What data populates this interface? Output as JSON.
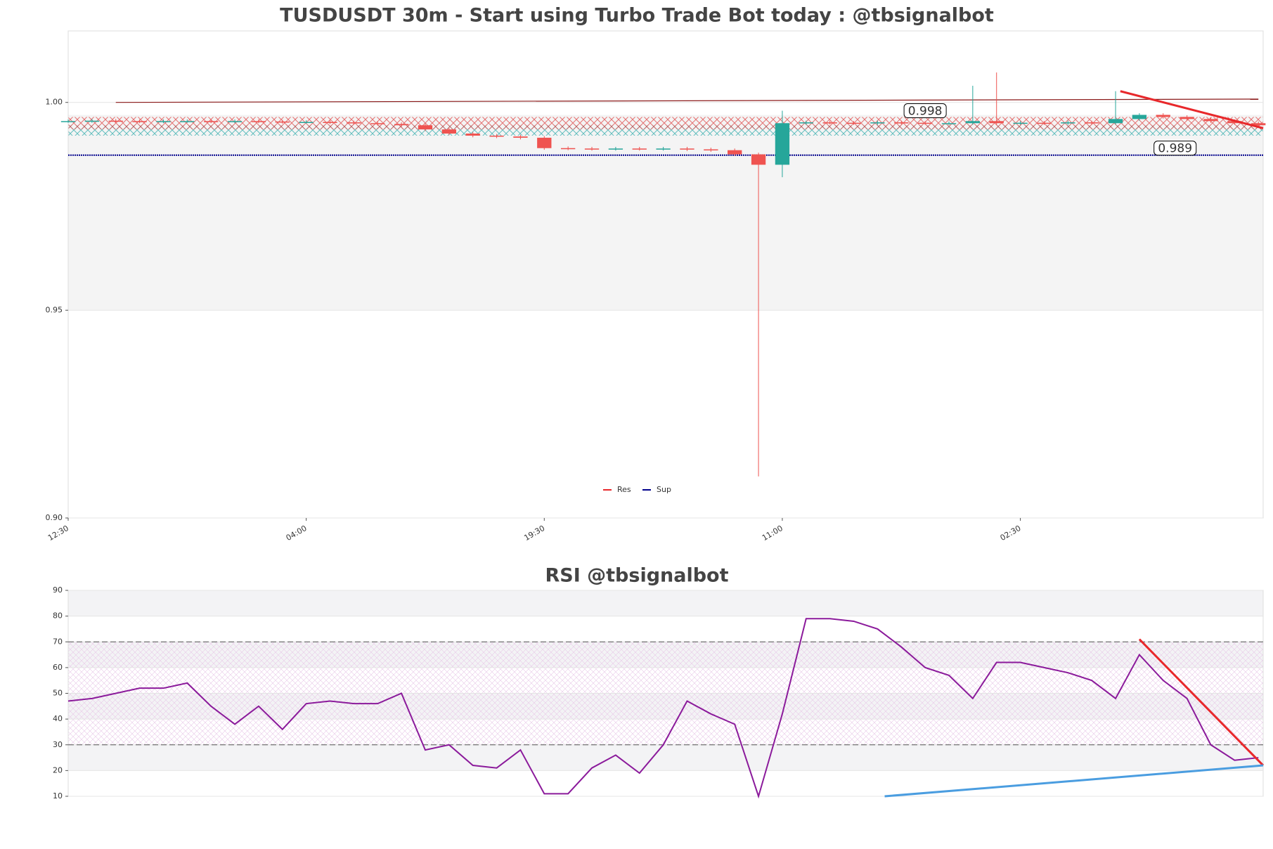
{
  "chart_data": [
    {
      "type": "candlestick",
      "title": "TUSDUSDT 30m - Start using Turbo Trade Bot today : @tbsignalbot",
      "x": [
        0,
        1,
        2,
        3,
        4,
        5,
        6,
        7,
        8,
        9,
        10,
        11,
        12,
        13,
        14,
        15,
        16,
        17,
        18,
        19,
        20,
        21,
        22,
        23,
        24,
        25,
        26,
        27,
        28,
        29,
        30,
        31,
        32,
        33,
        34,
        35,
        36,
        37,
        38,
        39,
        40,
        41,
        42,
        43,
        44,
        45,
        46,
        47,
        48,
        49,
        50
      ],
      "open": [
        0.9955,
        0.9955,
        0.9956,
        0.9955,
        0.9954,
        0.9955,
        0.9955,
        0.9954,
        0.9955,
        0.9954,
        0.9953,
        0.9953,
        0.9952,
        0.995,
        0.9948,
        0.9945,
        0.9935,
        0.9925,
        0.992,
        0.9918,
        0.9915,
        0.989,
        0.9889,
        0.9888,
        0.9889,
        0.9888,
        0.9889,
        0.9887,
        0.9885,
        0.9875,
        0.985,
        0.995,
        0.9952,
        0.9951,
        0.995,
        0.9952,
        0.9951,
        0.995,
        0.995,
        0.9955,
        0.995,
        0.9951,
        0.995,
        0.9952,
        0.995,
        0.996,
        0.997,
        0.9965,
        0.996,
        0.9955,
        0.995
      ],
      "high": [
        0.9959,
        0.996,
        0.996,
        0.9959,
        0.9959,
        0.9959,
        0.9959,
        0.9959,
        0.9959,
        0.9958,
        0.9957,
        0.9957,
        0.9956,
        0.9954,
        0.9952,
        0.9949,
        0.9939,
        0.9929,
        0.9924,
        0.9922,
        0.9919,
        0.9894,
        0.9893,
        0.9893,
        0.9893,
        0.9893,
        0.9893,
        0.9891,
        0.9889,
        0.9879,
        0.998,
        0.9956,
        0.9956,
        0.9955,
        0.9956,
        0.9956,
        0.9955,
        0.9954,
        1.004,
        1.0072,
        0.9955,
        0.9955,
        0.9956,
        0.9956,
        1.0027,
        0.9974,
        0.9974,
        0.9969,
        0.9964,
        0.9959,
        0.9954
      ],
      "low": [
        0.9951,
        0.9951,
        0.9951,
        0.995,
        0.995,
        0.9951,
        0.995,
        0.995,
        0.995,
        0.9949,
        0.9949,
        0.9948,
        0.9946,
        0.9944,
        0.9941,
        0.9931,
        0.9921,
        0.9916,
        0.9914,
        0.9911,
        0.9886,
        0.9885,
        0.9884,
        0.9884,
        0.9884,
        0.9884,
        0.9883,
        0.9881,
        0.9871,
        0.91,
        0.982,
        0.9946,
        0.9947,
        0.9946,
        0.9946,
        0.9947,
        0.9946,
        0.9946,
        0.9946,
        0.9946,
        0.9946,
        0.9946,
        0.9946,
        0.9946,
        0.9946,
        0.9956,
        0.9961,
        0.9956,
        0.9951,
        0.9946,
        0.9941
      ],
      "close": [
        0.9955,
        0.9956,
        0.9955,
        0.9954,
        0.9955,
        0.9955,
        0.9954,
        0.9955,
        0.9954,
        0.9953,
        0.9953,
        0.9952,
        0.995,
        0.9948,
        0.9945,
        0.9935,
        0.9925,
        0.992,
        0.9918,
        0.9915,
        0.989,
        0.9889,
        0.9888,
        0.9889,
        0.9888,
        0.9889,
        0.9887,
        0.9885,
        0.9875,
        0.985,
        0.995,
        0.9952,
        0.9951,
        0.995,
        0.9952,
        0.9951,
        0.995,
        0.995,
        0.9955,
        0.995,
        0.9951,
        0.995,
        0.9952,
        0.995,
        0.996,
        0.997,
        0.9965,
        0.996,
        0.9955,
        0.995,
        0.9945
      ],
      "up_color": "#26a69a",
      "down_color": "#ef5350",
      "xlim": [
        0,
        50.2
      ],
      "xticks": [
        {
          "value": 0,
          "label": "12:30"
        },
        {
          "value": 10,
          "label": "04:00"
        },
        {
          "value": 20,
          "label": "19:30"
        },
        {
          "value": 30,
          "label": "11:00"
        },
        {
          "value": 40,
          "label": "02:30"
        }
      ],
      "ylim": [
        0.9,
        1.0172
      ],
      "yticks": [
        {
          "value": 0.9,
          "label": "0.90"
        },
        {
          "value": 0.95,
          "label": "0.95"
        },
        {
          "value": 1.0,
          "label": "1.00"
        }
      ],
      "shaded_zone": [
        0.95,
        0.997
      ],
      "res_zone": [
        0.9935,
        0.9965
      ],
      "sup_zone": [
        0.992,
        0.9945
      ],
      "res_line": {
        "x": [
          2,
          50
        ],
        "y": [
          1.0,
          1.0008
        ],
        "color": "#8b1a1a"
      },
      "sup_line": {
        "x": [
          0,
          50.2
        ],
        "y": [
          0.9873,
          0.9873
        ],
        "color": "#00008b"
      },
      "trendline": {
        "x": [
          44.2,
          50.2
        ],
        "y": [
          1.0027,
          0.9938
        ],
        "color": "#e8282b"
      },
      "annotations": [
        {
          "text": "0.998",
          "value": 0.998,
          "x": 36,
          "color": "#e8282b"
        },
        {
          "text": "0.989",
          "value": 0.989,
          "x": 46.5,
          "color": "#0000cc"
        }
      ],
      "legend": [
        {
          "name": "Res",
          "color": "#e8282b"
        },
        {
          "name": "Sup",
          "color": "#00008b"
        }
      ]
    },
    {
      "type": "line",
      "title": "RSI @tbsignalbot",
      "x": [
        0,
        1,
        2,
        3,
        4,
        5,
        6,
        7,
        8,
        9,
        10,
        11,
        12,
        13,
        14,
        15,
        16,
        17,
        18,
        19,
        20,
        21,
        22,
        23,
        24,
        25,
        26,
        27,
        28,
        29,
        30,
        31,
        32,
        33,
        34,
        35,
        36,
        37,
        38,
        39,
        40,
        41,
        42,
        43,
        44,
        45,
        46,
        47,
        48,
        49,
        50
      ],
      "values": [
        47,
        48,
        50,
        52,
        52,
        54,
        45,
        38,
        45,
        36,
        46,
        47,
        46,
        46,
        50,
        28,
        30,
        22,
        21,
        28,
        11,
        11,
        21,
        26,
        19,
        30,
        47,
        42,
        38,
        10,
        42,
        79,
        79,
        78,
        75,
        68,
        60,
        57,
        48,
        62,
        62,
        60,
        58,
        55,
        48,
        65,
        55,
        48,
        30,
        24,
        25
      ],
      "color": "#8b1a9b",
      "xlim": [
        0,
        50.2
      ],
      "ylim": [
        10,
        90
      ],
      "yticks": [
        10,
        20,
        30,
        40,
        50,
        60,
        70,
        80,
        90
      ],
      "bands": [
        [
          80,
          90
        ],
        [
          60,
          70
        ],
        [
          40,
          50
        ],
        [
          20,
          30
        ]
      ],
      "hatch_zone": [
        30,
        70
      ],
      "hlines": [
        30,
        70
      ],
      "trendlines": [
        {
          "x": [
            45,
            50.2
          ],
          "y": [
            71,
            22
          ],
          "color": "#e8282b"
        },
        {
          "x": [
            34.3,
            50.2
          ],
          "y": [
            10,
            22
          ],
          "color": "#4a9de0"
        }
      ]
    }
  ]
}
